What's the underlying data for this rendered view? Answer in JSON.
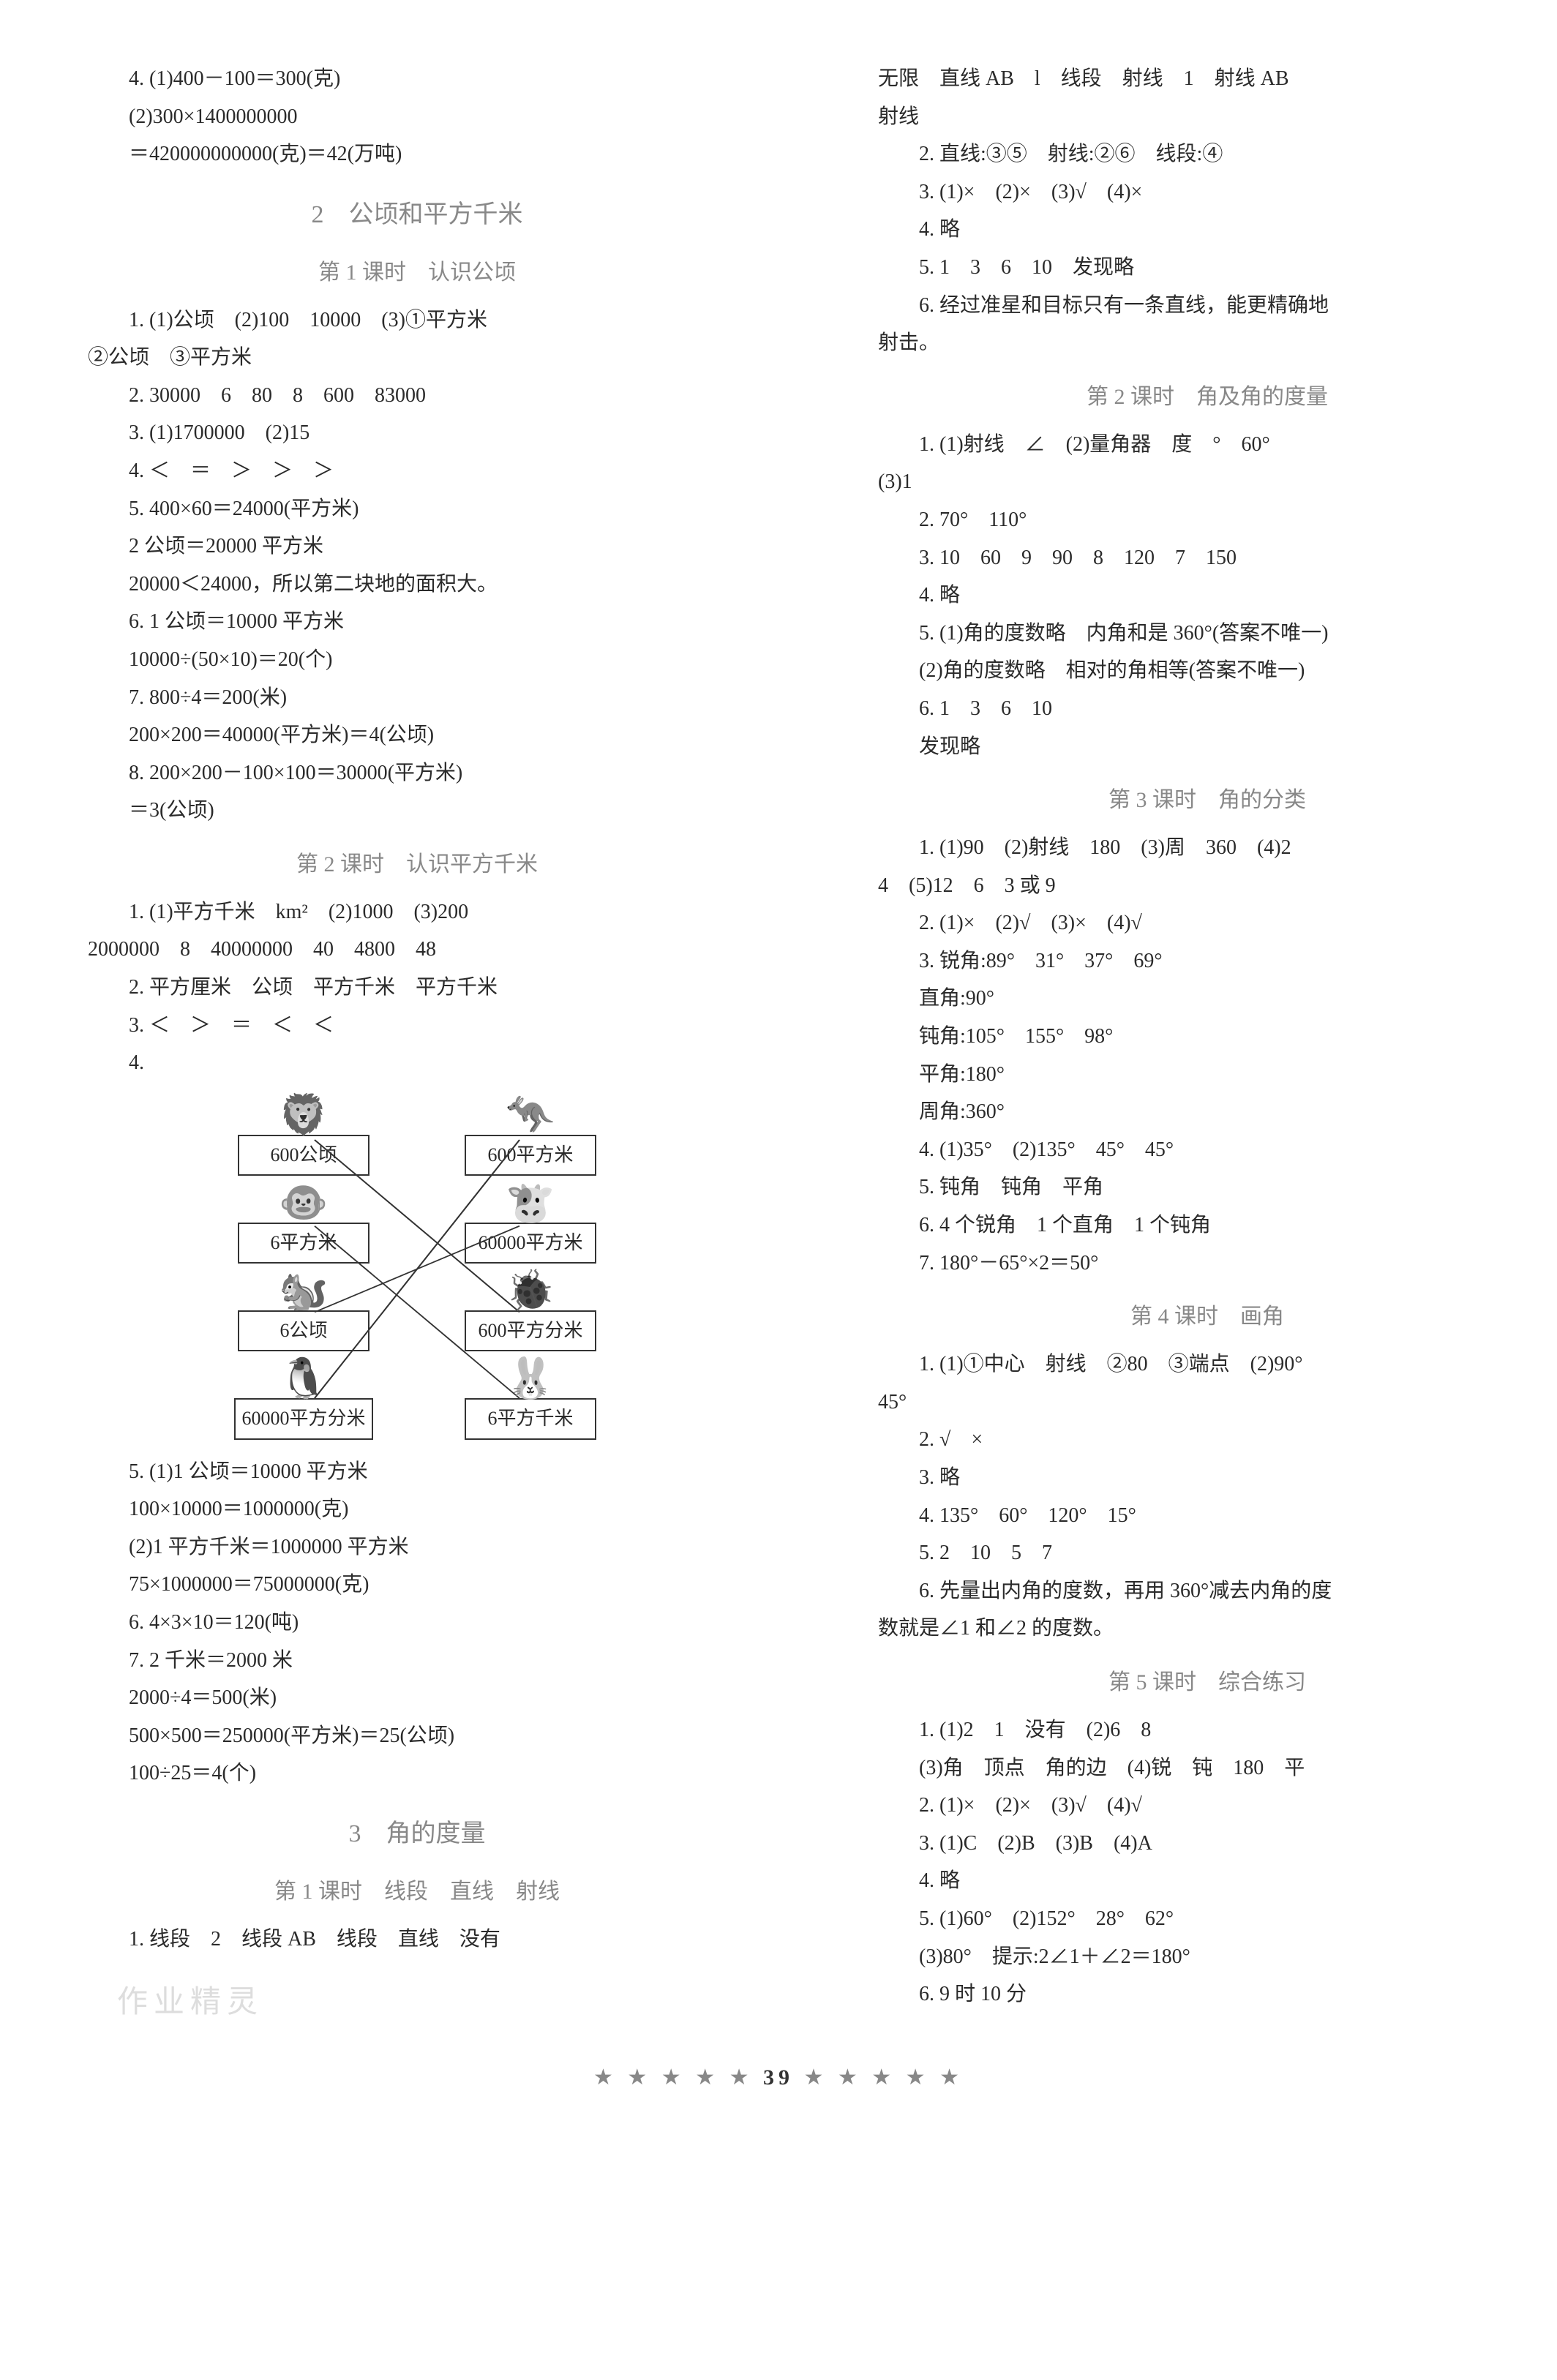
{
  "left": {
    "p4_lines": [
      "4. (1)400－100＝300(克)",
      "(2)300×1400000000",
      "＝420000000000(克)＝42(万吨)"
    ],
    "section2_title": "2　公顷和平方千米",
    "lesson1_title": "第 1 课时　认识公顷",
    "l1_lines": [
      "1. (1)公顷　(2)100　10000　(3)①平方米",
      "②公顷　③平方米",
      "2. 30000　6　80　8　600　83000",
      "3. (1)1700000　(2)15",
      "4. ＜　＝　＞　＞　＞",
      "5. 400×60＝24000(平方米)",
      "2 公顷＝20000 平方米",
      "20000＜24000，所以第二块地的面积大。",
      "6. 1 公顷＝10000 平方米",
      "10000÷(50×10)＝20(个)",
      "7. 800÷4＝200(米)",
      "200×200＝40000(平方米)＝4(公顷)",
      "8. 200×200－100×100＝30000(平方米)",
      "＝3(公顷)"
    ],
    "lesson2_title": "第 2 课时　认识平方千米",
    "l2_lines": [
      "1. (1)平方千米　km²　(2)1000　(3)200",
      "2000000　8　40000000　40　4800　48",
      "2. 平方厘米　公顷　平方千米　平方千米",
      "3. ＜　＞　＝　＜　＜",
      "4."
    ],
    "diagram": {
      "rows": [
        [
          {
            "label": "600公顷",
            "icon": "lion"
          },
          {
            "label": "600平方米",
            "icon": "kangaroo"
          }
        ],
        [
          {
            "label": "6平方米",
            "icon": "monkey"
          },
          {
            "label": "60000平方米",
            "icon": "cow"
          }
        ],
        [
          {
            "label": "6公顷",
            "icon": "squirrel"
          },
          {
            "label": "600平方分米",
            "icon": "ladybug"
          }
        ],
        [
          {
            "label": "60000平方分米",
            "icon": "penguin"
          },
          {
            "label": "6平方千米",
            "icon": "rabbit"
          }
        ]
      ],
      "box_border_color": "#333333",
      "line_color": "#333333"
    },
    "l2_after": [
      "5. (1)1 公顷＝10000 平方米",
      "100×10000＝1000000(克)",
      "(2)1 平方千米＝1000000 平方米",
      "75×1000000＝75000000(克)",
      "6. 4×3×10＝120(吨)",
      "7. 2 千米＝2000 米",
      "2000÷4＝500(米)",
      "500×500＝250000(平方米)＝25(公顷)",
      "100÷25＝4(个)"
    ],
    "section3_title": "3　角的度量",
    "lesson3_1_title": "第 1 课时　线段　直线　射线",
    "l3_1_first": "1. 线段　2　线段 AB　线段　直线　没有"
  },
  "right": {
    "top_lines": [
      "无限　直线 AB　l　线段　射线　1　射线 AB",
      "射线",
      "2. 直线:③⑤　射线:②⑥　线段:④",
      "3. (1)×　(2)×　(3)√　(4)×",
      "4. 略",
      "5. 1　3　6　10　发现略",
      "6. 经过准星和目标只有一条直线，能更精确地",
      "射击。"
    ],
    "lesson2_title": "第 2 课时　角及角的度量",
    "l2_lines": [
      "1. (1)射线　∠　(2)量角器　度　°　60°",
      "(3)1",
      "2. 70°　110°",
      "3. 10　60　9　90　8　120　7　150",
      "4. 略",
      "5. (1)角的度数略　内角和是 360°(答案不唯一)",
      "(2)角的度数略　相对的角相等(答案不唯一)",
      "6. 1　3　6　10",
      "发现略"
    ],
    "lesson3_title": "第 3 课时　角的分类",
    "l3_lines": [
      "1. (1)90　(2)射线　180　(3)周　360　(4)2",
      "4　(5)12　6　3 或 9",
      "2. (1)×　(2)√　(3)×　(4)√",
      "3. 锐角:89°　31°　37°　69°",
      "直角:90°",
      "钝角:105°　155°　98°",
      "平角:180°",
      "周角:360°",
      "4. (1)35°　(2)135°　45°　45°",
      "5. 钝角　钝角　平角",
      "6. 4 个锐角　1 个直角　1 个钝角",
      "7. 180°－65°×2＝50°"
    ],
    "lesson4_title": "第 4 课时　画角",
    "l4_lines": [
      "1. (1)①中心　射线　②80　③端点　(2)90°",
      "45°",
      "2. √　×",
      "3. 略",
      "4. 135°　60°　120°　15°",
      "5. 2　10　5　7",
      "6. 先量出内角的度数，再用 360°减去内角的度",
      "数就是∠1 和∠2 的度数。"
    ],
    "lesson5_title": "第 5 课时　综合练习",
    "l5_lines": [
      "1. (1)2　1　没有　(2)6　8",
      "(3)角　顶点　角的边　(4)锐　钝　180　平",
      "2. (1)×　(2)×　(3)√　(4)√",
      "3. (1)C　(2)B　(3)B　(4)A",
      "4. 略",
      "5. (1)60°　(2)152°　28°　62°",
      "(3)80°　提示:2∠1＋∠2＝180°",
      "6. 9 时 10 分"
    ]
  },
  "footer": {
    "stars_left": "★ ★ ★ ★ ★",
    "page_num": "39",
    "stars_right": "★ ★ ★ ★ ★"
  },
  "watermark": "作业精灵",
  "colors": {
    "text": "#2a2a2a",
    "title_gray": "#888888",
    "background": "#ffffff"
  },
  "fonts": {
    "body": "SimSun",
    "title": "KaiTi",
    "body_size_pt": 21,
    "title_size_pt": 25
  }
}
